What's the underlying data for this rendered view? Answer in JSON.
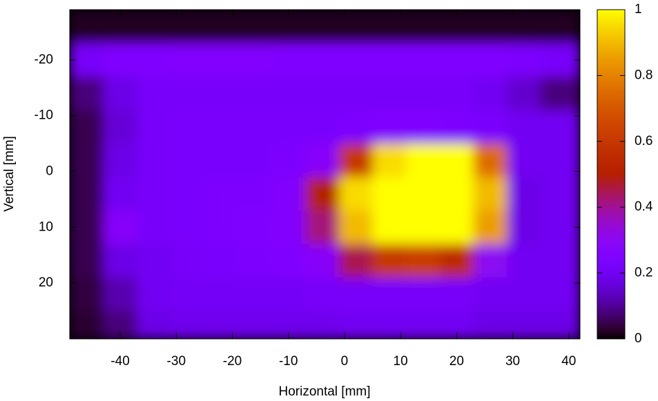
{
  "chart_data": {
    "type": "heatmap",
    "x_label": "Horizontal [mm]",
    "y_label": "Vertical [mm]",
    "x": [
      -46,
      -40,
      -34,
      -28,
      -22,
      -16,
      -10,
      -4,
      2,
      8,
      14,
      20,
      26,
      32,
      38
    ],
    "y": [
      -26,
      -20,
      -14,
      -8,
      -2,
      4,
      10,
      16,
      22,
      28
    ],
    "z": [
      [
        0.02,
        0.02,
        0.02,
        0.02,
        0.02,
        0.02,
        0.02,
        0.02,
        0.02,
        0.02,
        0.02,
        0.02,
        0.02,
        0.02,
        0.02
      ],
      [
        0.22,
        0.25,
        0.25,
        0.26,
        0.26,
        0.26,
        0.25,
        0.25,
        0.25,
        0.25,
        0.25,
        0.25,
        0.25,
        0.24,
        0.22
      ],
      [
        0.08,
        0.18,
        0.22,
        0.22,
        0.22,
        0.22,
        0.22,
        0.22,
        0.22,
        0.22,
        0.22,
        0.22,
        0.2,
        0.15,
        0.08
      ],
      [
        0.05,
        0.16,
        0.22,
        0.23,
        0.23,
        0.23,
        0.23,
        0.23,
        0.24,
        0.25,
        0.25,
        0.24,
        0.23,
        0.2,
        0.2
      ],
      [
        0.05,
        0.18,
        0.22,
        0.23,
        0.23,
        0.23,
        0.24,
        0.28,
        0.6,
        0.95,
        1,
        1,
        0.75,
        0.2,
        0.2
      ],
      [
        0.05,
        0.2,
        0.22,
        0.23,
        0.24,
        0.24,
        0.26,
        0.5,
        0.95,
        1,
        1,
        1,
        0.9,
        0.18,
        0.2
      ],
      [
        0.05,
        0.28,
        0.22,
        0.23,
        0.24,
        0.25,
        0.26,
        0.42,
        0.9,
        1,
        1,
        1,
        0.85,
        0.18,
        0.2
      ],
      [
        0.05,
        0.18,
        0.2,
        0.22,
        0.23,
        0.24,
        0.25,
        0.28,
        0.45,
        0.6,
        0.62,
        0.55,
        0.3,
        0.2,
        0.2
      ],
      [
        0.04,
        0.12,
        0.2,
        0.21,
        0.21,
        0.21,
        0.21,
        0.22,
        0.22,
        0.22,
        0.22,
        0.22,
        0.2,
        0.2,
        0.2
      ],
      [
        0.03,
        0.08,
        0.18,
        0.19,
        0.19,
        0.19,
        0.19,
        0.19,
        0.2,
        0.2,
        0.2,
        0.2,
        0.18,
        0.18,
        0.18
      ]
    ],
    "xlim": [
      -49,
      42
    ],
    "ylim": [
      -29,
      30
    ],
    "y_reversed": true,
    "xticks": [
      -40,
      -30,
      -20,
      -10,
      0,
      10,
      20,
      30,
      40
    ],
    "yticks": [
      -20,
      -10,
      0,
      10,
      20
    ],
    "palette": "gnuplot",
    "colorbar": {
      "lim": [
        0,
        1
      ],
      "ticks": [
        0,
        0.2,
        0.4,
        0.6,
        0.8,
        1
      ]
    }
  }
}
